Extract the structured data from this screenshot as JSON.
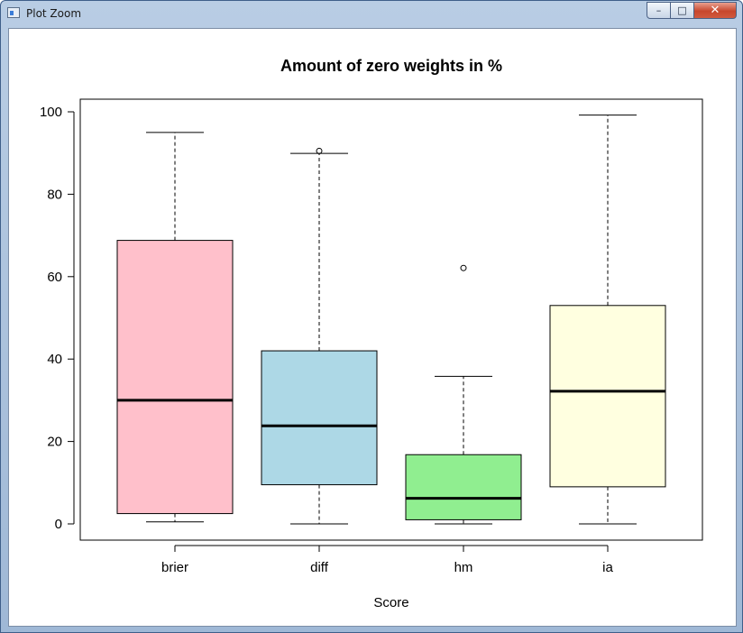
{
  "window": {
    "title": "Plot Zoom",
    "controls": {
      "minimize": "–",
      "maximize": "□",
      "close": "✕"
    }
  },
  "chart_data": {
    "type": "boxplot",
    "title": "Amount of zero weights in %",
    "xlabel": "Score",
    "ylabel": "",
    "ylim": [
      -4,
      103
    ],
    "yticks": [
      0,
      20,
      40,
      60,
      80,
      100
    ],
    "grid": false,
    "categories": [
      "brier",
      "diff",
      "hm",
      "ia"
    ],
    "colors": [
      "#ffc0cb",
      "#add8e6",
      "#90ee90",
      "#ffffe0"
    ],
    "boxes": [
      {
        "name": "brier",
        "whisker_low": 0.5,
        "q1": 2.5,
        "median": 30.0,
        "q3": 68.8,
        "whisker_high": 95.0,
        "outliers": []
      },
      {
        "name": "diff",
        "whisker_low": 0.0,
        "q1": 9.5,
        "median": 23.8,
        "q3": 42.0,
        "whisker_high": 89.9,
        "outliers": [
          90.5
        ]
      },
      {
        "name": "hm",
        "whisker_low": 0.0,
        "q1": 1.0,
        "median": 6.2,
        "q3": 16.8,
        "whisker_high": 35.8,
        "outliers": [
          62.1
        ]
      },
      {
        "name": "ia",
        "whisker_low": 0.0,
        "q1": 9.0,
        "median": 32.2,
        "q3": 53.0,
        "whisker_high": 99.2,
        "outliers": []
      }
    ]
  }
}
